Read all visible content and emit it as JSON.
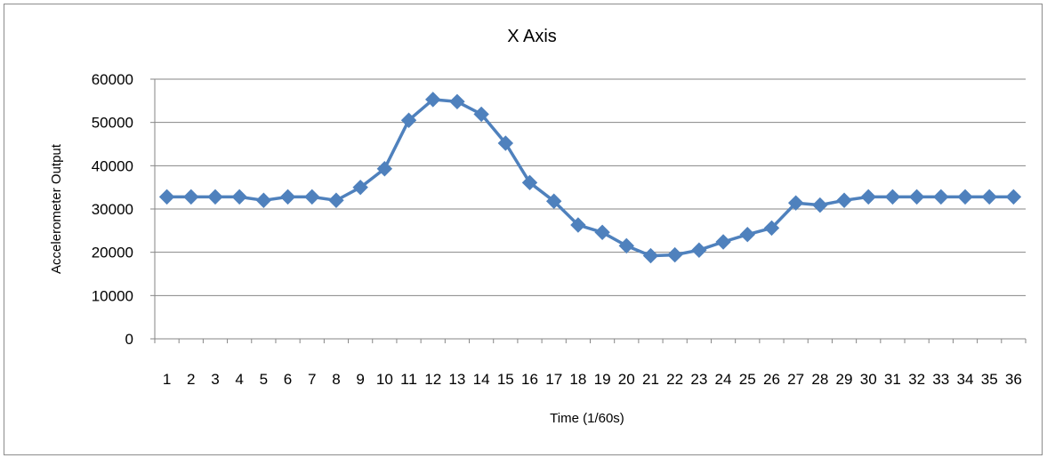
{
  "chart_data": {
    "type": "line",
    "title": "X Axis",
    "xlabel": "Time (1/60s)",
    "ylabel": "Accelerometer Output",
    "ylim": [
      0,
      60000
    ],
    "yticks": [
      0,
      10000,
      20000,
      30000,
      40000,
      50000,
      60000
    ],
    "grid": true,
    "legend": "none",
    "categories": [
      "1",
      "2",
      "3",
      "4",
      "5",
      "6",
      "7",
      "8",
      "9",
      "10",
      "11",
      "12",
      "13",
      "14",
      "15",
      "16",
      "17",
      "18",
      "19",
      "20",
      "21",
      "22",
      "23",
      "24",
      "25",
      "26",
      "27",
      "28",
      "29",
      "30",
      "31",
      "32",
      "33",
      "34",
      "35",
      "36"
    ],
    "series": [
      {
        "color": "#4f81bd",
        "marker": "diamond",
        "values": [
          32800,
          32800,
          32800,
          32800,
          32000,
          32800,
          32800,
          32000,
          35000,
          39300,
          50500,
          55300,
          54800,
          51900,
          45200,
          36100,
          31800,
          26300,
          24600,
          21500,
          19200,
          19400,
          20500,
          22400,
          24100,
          25600,
          31400,
          30900,
          32000,
          32800,
          32800,
          32800,
          32800,
          32800,
          32800,
          32800
        ]
      }
    ]
  }
}
